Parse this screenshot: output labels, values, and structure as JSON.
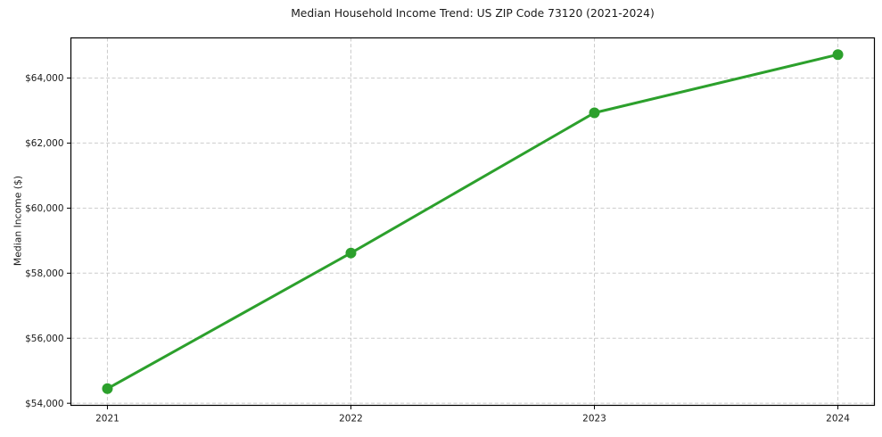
{
  "chart_data": {
    "type": "line",
    "title": "Median Household Income Trend: US ZIP Code 73120 (2021-2024)",
    "xlabel": "",
    "ylabel": "Median Income ($)",
    "x": [
      2021,
      2022,
      2023,
      2024
    ],
    "series": [
      {
        "name": "Median Household Income",
        "values": [
          54450,
          58620,
          62930,
          64720
        ]
      }
    ],
    "xtick_labels": [
      "2021",
      "2022",
      "2023",
      "2024"
    ],
    "ytick_values": [
      54000,
      56000,
      58000,
      60000,
      62000,
      64000
    ],
    "ytick_labels": [
      "$54,000",
      "$56,000",
      "$58,000",
      "$60,000",
      "$62,000",
      "$64,000"
    ],
    "xlim": [
      2020.85,
      2024.15
    ],
    "ylim": [
      53935,
      65235
    ],
    "grid": true,
    "legend": null,
    "colors": {
      "line": "#2ca02c",
      "marker": "#2ca02c",
      "grid": "#cccccc",
      "spine": "#000000",
      "text": "#1a1a1a",
      "background": "#ffffff"
    },
    "marker_style": "circle",
    "marker_radius": 6,
    "line_width": 3
  }
}
